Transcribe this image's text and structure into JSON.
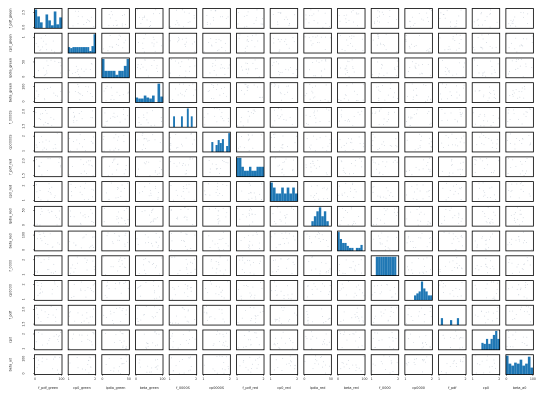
{
  "figure": {
    "background": "#ffffff",
    "bar_color": "#1f77b4",
    "frame_color": "#000000",
    "scatter_color": "#c8cfd8"
  },
  "chart_data": {
    "type": "scatter_matrix",
    "variables": [
      "f_pdf_green",
      "cp0_green",
      "lpdia_green",
      "beta_green",
      "f_0000S",
      "cp0000S",
      "f_pdf_red",
      "cp0_red",
      "lpdia_red",
      "beta_red",
      "f_0000",
      "cp0000",
      "f_pdf",
      "cp0",
      "beta_a0"
    ],
    "y_tick_labels": [
      [
        "2.5",
        "0.0"
      ],
      [
        "1",
        ""
      ],
      [
        "50",
        "0"
      ],
      [
        "100",
        "0"
      ],
      [
        "2.0",
        "1.5"
      ],
      [
        "2",
        "1"
      ],
      [
        "2.0",
        "1.5"
      ],
      [
        "2",
        "1"
      ],
      [
        "50",
        "0"
      ],
      [
        "100",
        "0"
      ],
      [
        "2",
        "1"
      ],
      [
        "2",
        "1"
      ],
      [
        "2.0",
        "1.5"
      ],
      [
        "2",
        "1"
      ],
      [
        "100",
        "0"
      ]
    ],
    "x_tick_labels": [
      [
        "0",
        "100"
      ],
      [
        "1",
        "2"
      ],
      [
        "0",
        "50"
      ],
      [
        "0",
        "100"
      ],
      [
        "1",
        "2"
      ],
      [
        "1",
        "2"
      ],
      [
        "1",
        "2"
      ],
      [
        "1",
        "2"
      ],
      [
        "0",
        "50"
      ],
      [
        "0",
        "100"
      ],
      [
        "1",
        "2"
      ],
      [
        "1",
        "2"
      ],
      [
        "1",
        "2"
      ],
      [
        "1",
        "2"
      ],
      [
        "0",
        "100"
      ]
    ],
    "diagonal_histograms": [
      [
        0.95,
        0.6,
        0.3,
        0.0,
        0.7,
        0.4,
        0.15,
        0.85,
        0.2,
        0.55
      ],
      [
        0.3,
        0.25,
        0.3,
        0.3,
        0.3,
        0.3,
        0.3,
        0.3,
        0.3,
        0.3,
        0.1,
        0.35,
        0.95
      ],
      [
        0.95,
        0.35,
        0.35,
        0.35,
        0.35,
        0.15,
        0.35,
        0.35,
        0.6,
        0.95
      ],
      [
        0.25,
        0.2,
        0.2,
        0.35,
        0.25,
        0.2,
        0.35,
        0.0,
        0.95,
        0.3
      ],
      [
        0.0,
        0.0,
        0.55,
        0.0,
        0.0,
        0.0,
        0.55,
        0.0,
        0.0,
        0.95,
        0.0,
        0.55,
        0.0,
        0.0
      ],
      [
        0.0,
        0.0,
        0.0,
        0.0,
        0.5,
        0.0,
        0.35,
        0.6,
        0.45,
        0.65,
        0.0,
        0.3,
        0.95
      ],
      [
        0.95,
        0.95,
        0.5,
        0.3,
        0.3,
        0.5,
        0.3,
        0.3,
        0.5,
        0.5,
        0.5
      ],
      [
        0.95,
        0.7,
        0.4,
        0.4,
        0.7,
        0.4,
        0.7,
        0.4,
        0.7,
        0.4
      ],
      [
        0.0,
        0.0,
        0.0,
        0.25,
        0.5,
        0.75,
        0.95,
        0.5,
        0.75,
        0.25,
        0.0
      ],
      [
        0.95,
        0.6,
        0.4,
        0.4,
        0.25,
        0.15,
        0.15,
        0.0,
        0.15,
        0.15,
        0.3,
        0.0
      ],
      [
        0.0,
        0.0,
        0.95,
        0.95,
        0.95,
        0.95,
        0.95,
        0.95,
        0.95,
        0.95,
        0.95,
        0.0
      ],
      [
        0.0,
        0.0,
        0.0,
        0.0,
        0.25,
        0.35,
        0.45,
        0.95,
        0.6,
        0.45,
        0.25,
        0.25
      ],
      [
        0.0,
        0.35,
        0.0,
        0.0,
        0.0,
        0.25,
        0.0,
        0.0,
        0.35,
        0.0,
        0.0,
        0.0
      ],
      [
        0.0,
        0.0,
        0.0,
        0.0,
        0.35,
        0.3,
        0.55,
        0.3,
        0.55,
        0.75,
        0.95,
        0.55
      ],
      [
        0.95,
        0.55,
        0.45,
        0.6,
        0.55,
        0.75,
        0.45,
        0.55,
        0.9,
        0.35
      ]
    ],
    "offdiagonal": "scatter",
    "grid": false
  }
}
